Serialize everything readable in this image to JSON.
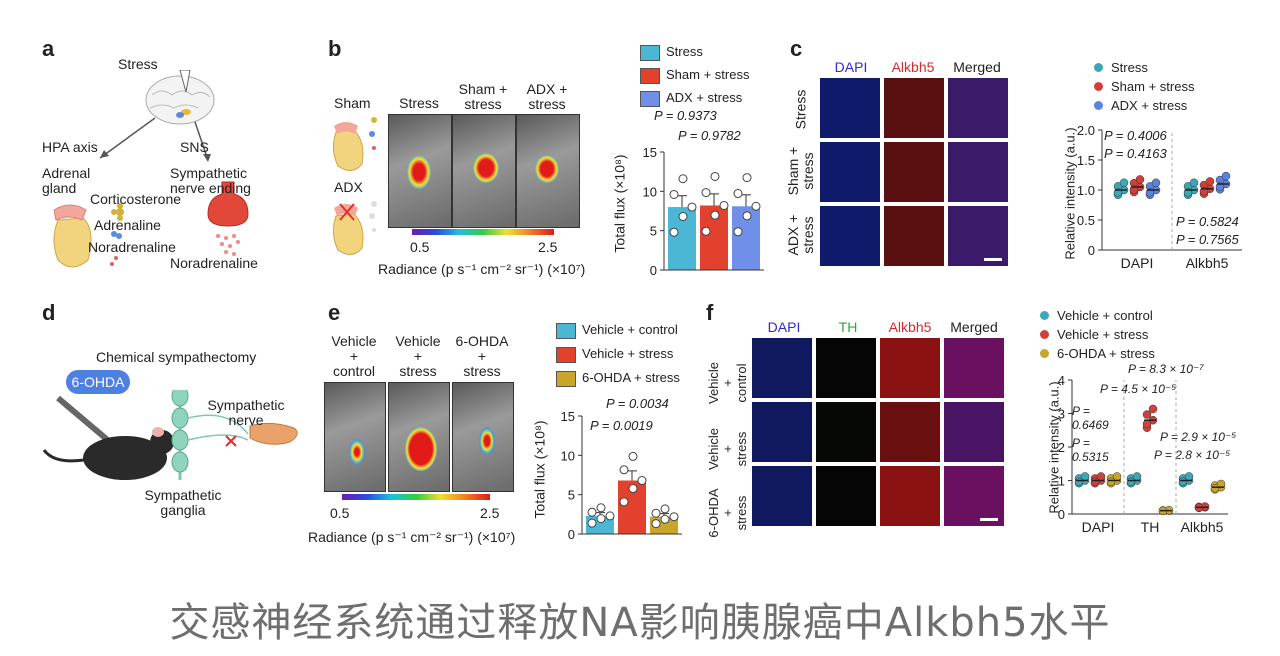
{
  "panel_letters": {
    "a": "a",
    "b": "b",
    "c": "c",
    "d": "d",
    "e": "e",
    "f": "f"
  },
  "panel_a": {
    "stress": "Stress",
    "hpa": "HPA axis",
    "sns": "SNS",
    "adrenal": "Adrenal\ngland",
    "sympathetic_ending": "Sympathetic\nnerve ending",
    "corticosterone": "Corticosterone",
    "adrenaline": "Adrenaline",
    "noradrenaline": "Noradrenaline",
    "noradrenaline2": "Noradrenaline"
  },
  "panel_b": {
    "sham": "Sham",
    "adx": "ADX",
    "col_stress": "Stress",
    "col_sham": "Sham +\nstress",
    "col_adx": "ADX +\nstress",
    "scale_min": "0.5",
    "scale_max": "2.5",
    "radiance": "Radiance (p s⁻¹ cm⁻² sr⁻¹) (×10⁷)"
  },
  "panel_b_chart": {
    "legend": [
      "Stress",
      "Sham + stress",
      "ADX + stress"
    ],
    "colors": [
      "#4bb7d4",
      "#e2412e",
      "#6f8fe8"
    ],
    "p1": "P = 0.9373",
    "p2": "P = 0.9782",
    "ylabel": "Total flux (×10⁸)",
    "yticks": [
      "0",
      "5",
      "10",
      "15"
    ]
  },
  "panel_c": {
    "cols": [
      "DAPI",
      "Alkbh5",
      "Merged"
    ],
    "rows": [
      "Stress",
      "Sham +\nstress",
      "ADX +\nstress"
    ],
    "col_colors": [
      "#2c2ccf",
      "#d42a2a",
      "#222"
    ]
  },
  "panel_c_chart": {
    "legend": [
      "Stress",
      "Sham + stress",
      "ADX + stress"
    ],
    "colors": [
      "#3aa8b8",
      "#d0403a",
      "#5a82e0"
    ],
    "p1": "P = 0.4006",
    "p2": "P = 0.4163",
    "p3": "P = 0.5824",
    "p4": "P = 0.7565",
    "ylabel": "Relative intensity (a.u.)",
    "yticks": [
      "0",
      "0.5",
      "1.0",
      "1.5",
      "2.0"
    ],
    "xlabels": [
      "DAPI",
      "Alkbh5"
    ]
  },
  "panel_d": {
    "title": "Chemical sympathectomy",
    "drug": "6-OHDA",
    "nerve": "Sympathetic\nnerve",
    "ganglia": "Sympathetic\nganglia"
  },
  "panel_e": {
    "cols": [
      "Vehicle\n+\ncontrol",
      "Vehicle\n+\nstress",
      "6-OHDA\n+\nstress"
    ],
    "scale_min": "0.5",
    "scale_max": "2.5",
    "radiance": "Radiance (p s⁻¹ cm⁻² sr⁻¹) (×10⁷)"
  },
  "panel_e_chart": {
    "legend": [
      "Vehicle + control",
      "Vehicle + stress",
      "6-OHDA + stress"
    ],
    "colors": [
      "#4bb7d4",
      "#e2412e",
      "#c9a52a"
    ],
    "p1": "P = 0.0034",
    "p2": "P = 0.0019",
    "ylabel": "Total flux (×10⁸)",
    "yticks": [
      "0",
      "5",
      "10",
      "15"
    ]
  },
  "panel_f": {
    "cols": [
      "DAPI",
      "TH",
      "Alkbh5",
      "Merged"
    ],
    "col_colors": [
      "#2c2ccf",
      "#2fa83a",
      "#d42a2a",
      "#222"
    ],
    "rows": [
      "Vehicle\n+\ncontrol",
      "Vehicle\n+\nstress",
      "6-OHDA\n+\nstress"
    ]
  },
  "panel_f_chart": {
    "legend": [
      "Vehicle + control",
      "Vehicle + stress",
      "6-OHDA + stress"
    ],
    "colors": [
      "#3aa8b8",
      "#d0403a",
      "#c9a52a"
    ],
    "p_dapi1": "P =\n0.6469",
    "p_dapi2": "P =\n0.5315",
    "p_th1": "P = 8.3 × 10⁻⁷",
    "p_th2": "P = 4.5 × 10⁻⁵",
    "p_alk1": "P = 2.9 × 10⁻⁵",
    "p_alk2": "P = 2.8 × 10⁻⁵",
    "ylabel": "Relative intensity (a.u.)",
    "yticks": [
      "0",
      "1",
      "2",
      "3",
      "4"
    ],
    "xlabels": [
      "DAPI",
      "TH",
      "Alkbh5"
    ]
  },
  "chart_data": [
    {
      "type": "bar",
      "categories": [
        "Stress",
        "Sham + stress",
        "ADX + stress"
      ],
      "values": [
        8.0,
        8.2,
        8.1
      ],
      "ylabel": "Total flux (×10⁸)",
      "ylim": [
        0,
        15
      ]
    },
    {
      "type": "scatter",
      "categories": [
        "DAPI",
        "Alkbh5"
      ],
      "series": [
        {
          "name": "Stress",
          "values": [
            1.0,
            1.0
          ]
        },
        {
          "name": "Sham + stress",
          "values": [
            1.05,
            1.02
          ]
        },
        {
          "name": "ADX + stress",
          "values": [
            1.0,
            1.1
          ]
        }
      ],
      "ylabel": "Relative intensity (a.u.)",
      "ylim": [
        0,
        2.0
      ]
    },
    {
      "type": "bar",
      "categories": [
        "Vehicle + control",
        "Vehicle + stress",
        "6-OHDA + stress"
      ],
      "values": [
        2.3,
        6.8,
        2.2
      ],
      "ylabel": "Total flux (×10⁸)",
      "ylim": [
        0,
        15
      ]
    },
    {
      "type": "scatter",
      "categories": [
        "DAPI",
        "TH",
        "Alkbh5"
      ],
      "series": [
        {
          "name": "Vehicle + control",
          "values": [
            1.0,
            1.0,
            1.0
          ]
        },
        {
          "name": "Vehicle + stress",
          "values": [
            1.0,
            2.8,
            0.2
          ]
        },
        {
          "name": "6-OHDA + stress",
          "values": [
            1.0,
            0.1,
            0.8
          ]
        }
      ],
      "ylabel": "Relative intensity (a.u.)",
      "ylim": [
        0,
        4
      ]
    }
  ],
  "caption": "交感神经系统通过释放NA影响胰腺癌中Alkbh5水平"
}
